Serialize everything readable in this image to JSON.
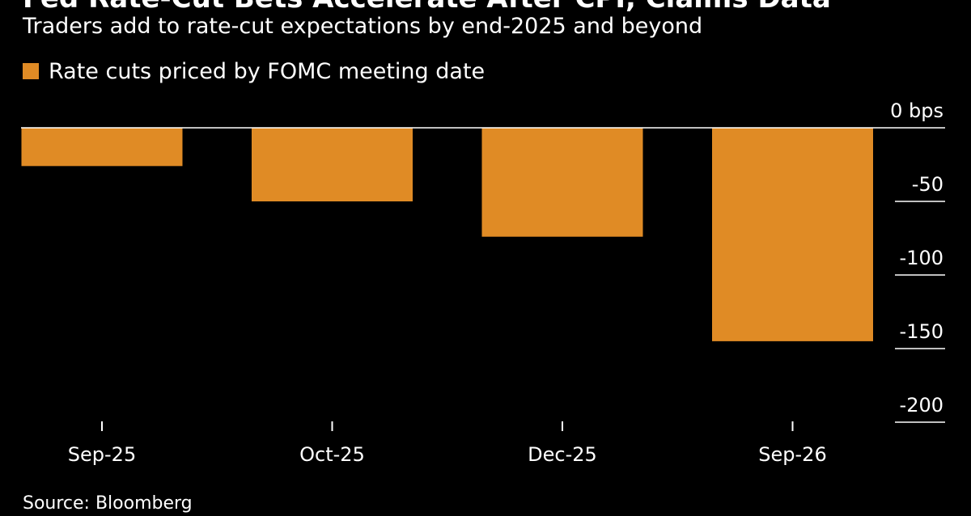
{
  "colors": {
    "background": "#000000",
    "text": "#ffffff",
    "bar": "#e08b25",
    "axis": "#ffffff"
  },
  "chart_data": {
    "type": "bar",
    "title": "Fed Rate-Cut Bets Accelerate After CPI, Claims Data",
    "subtitle": "Traders add to rate-cut expectations by end-2025 and beyond",
    "legend": {
      "placement": "top-left",
      "entries": [
        "Rate cuts priced by FOMC meeting date"
      ]
    },
    "categories": [
      "Sep-25",
      "Oct-25",
      "Dec-25",
      "Sep-26"
    ],
    "series": [
      {
        "name": "Rate cuts priced by FOMC meeting date",
        "values": [
          -26,
          -50,
          -74,
          -145
        ]
      }
    ],
    "ylim": [
      -200,
      0
    ],
    "yticks": [
      {
        "value": 0,
        "label": "0 bps"
      },
      {
        "value": -50,
        "label": "-50"
      },
      {
        "value": -100,
        "label": "-100"
      },
      {
        "value": -150,
        "label": "-150"
      },
      {
        "value": -200,
        "label": "-200"
      }
    ],
    "y_axis_position": "right",
    "grid": false
  },
  "source": "Source: Bloomberg"
}
